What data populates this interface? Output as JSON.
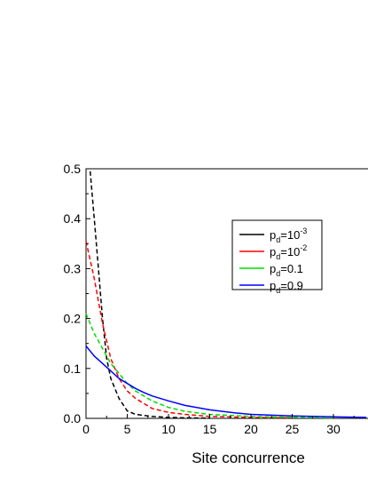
{
  "chart_data": {
    "type": "line",
    "title": "",
    "xlabel": "Site concurrence",
    "ylabel": "",
    "xlim": [
      0,
      34
    ],
    "ylim": [
      0,
      0.5
    ],
    "x_ticks": [
      "0",
      "5",
      "10",
      "15",
      "20",
      "25",
      "30",
      "3"
    ],
    "y_ticks": [
      "0.0",
      "0.1",
      "0.2",
      "0.3",
      "0.4",
      "0.5"
    ],
    "grid": false,
    "legend_position": "top-right",
    "series": [
      {
        "name_main": "p",
        "name_sub": "d",
        "name_rest": "=10",
        "name_sup": "-3",
        "color": "#000000",
        "style": "dashed",
        "x": [
          0.5,
          1,
          1.5,
          2,
          2.5,
          3,
          4,
          5,
          6,
          8,
          10,
          12,
          15
        ],
        "y": [
          0.495,
          0.4,
          0.3,
          0.2,
          0.12,
          0.08,
          0.04,
          0.015,
          0.008,
          0.004,
          0.002,
          0.001,
          0.0005
        ]
      },
      {
        "name_main": "p",
        "name_sub": "d",
        "name_rest": "=10",
        "name_sup": "-2",
        "color": "#ff0000",
        "style": "dashed",
        "x": [
          0,
          1,
          2,
          3,
          4,
          5,
          6,
          8,
          10,
          12,
          15,
          20,
          25
        ],
        "y": [
          0.355,
          0.28,
          0.19,
          0.12,
          0.08,
          0.055,
          0.04,
          0.02,
          0.012,
          0.008,
          0.004,
          0.002,
          0.001
        ]
      },
      {
        "name_main": "p",
        "name_sub": "d",
        "name_rest": "=0.1",
        "name_sup": "",
        "color": "#00dd00",
        "style": "dashed",
        "x": [
          0,
          1,
          2,
          3,
          4,
          5,
          6,
          8,
          10,
          12,
          15,
          20,
          25,
          30
        ],
        "y": [
          0.21,
          0.17,
          0.14,
          0.11,
          0.09,
          0.07,
          0.055,
          0.035,
          0.022,
          0.014,
          0.008,
          0.004,
          0.002,
          0.001
        ]
      },
      {
        "name_main": "p",
        "name_sub": "d",
        "name_rest": "=0.9",
        "name_sup": "",
        "color": "#0000ff",
        "style": "solid",
        "x": [
          0,
          1,
          2,
          3,
          4,
          5,
          6,
          7,
          8,
          10,
          12,
          15,
          18,
          20,
          25,
          30,
          34
        ],
        "y": [
          0.145,
          0.125,
          0.11,
          0.095,
          0.08,
          0.07,
          0.06,
          0.052,
          0.045,
          0.035,
          0.026,
          0.017,
          0.011,
          0.008,
          0.005,
          0.003,
          0.002
        ]
      }
    ]
  }
}
